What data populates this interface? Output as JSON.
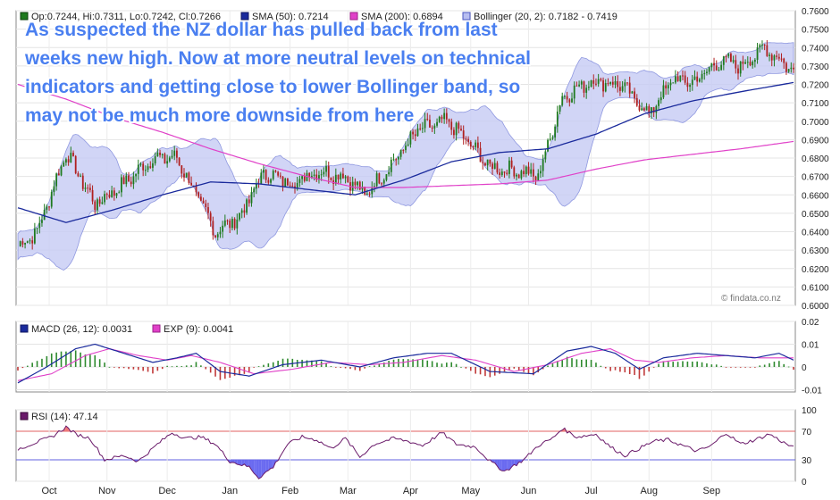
{
  "chart_data": [
    {
      "type": "candlestick",
      "panel": "price",
      "legend": [
        {
          "label": "Op:0.7244, Hi:0.7311, Lo:0.7242, Cl:0.7266",
          "color": "#1f7a1f"
        },
        {
          "label": "SMA (50): 0.7214",
          "color": "#1a2a9c"
        },
        {
          "label": "SMA (200): 0.6894",
          "color": "#e040c8"
        },
        {
          "label": "Bollinger (20, 2): 0.7182 - 0.7419",
          "color": "#b8bef0"
        }
      ],
      "annotation": [
        "As suspected the NZ dollar has pulled back from last",
        "weeks new high. Now at more neutral levels on technical",
        "indicators and getting close to lower Bollinger band, so",
        "may not be much more downside from here"
      ],
      "watermark": "© findata.co.nz",
      "yticks": [
        "0.7600",
        "0.7500",
        "0.7400",
        "0.7300",
        "0.7200",
        "0.7100",
        "0.7000",
        "0.6900",
        "0.6800",
        "0.6700",
        "0.6600",
        "0.6500",
        "0.6400",
        "0.6300",
        "0.6200",
        "0.6100",
        "0.6000"
      ],
      "ylim": [
        0.6,
        0.76
      ],
      "anchors": [
        [
          0,
          0.632
        ],
        [
          8,
          0.64
        ],
        [
          20,
          0.683
        ],
        [
          32,
          0.655
        ],
        [
          44,
          0.666
        ],
        [
          56,
          0.68
        ],
        [
          66,
          0.68
        ],
        [
          76,
          0.655
        ],
        [
          82,
          0.64
        ],
        [
          92,
          0.648
        ],
        [
          102,
          0.672
        ],
        [
          114,
          0.666
        ],
        [
          124,
          0.673
        ],
        [
          136,
          0.67
        ],
        [
          144,
          0.66
        ],
        [
          154,
          0.675
        ],
        [
          166,
          0.695
        ],
        [
          178,
          0.7
        ],
        [
          186,
          0.69
        ],
        [
          196,
          0.675
        ],
        [
          208,
          0.673
        ],
        [
          216,
          0.67
        ],
        [
          226,
          0.713
        ],
        [
          238,
          0.722
        ],
        [
          250,
          0.72
        ],
        [
          262,
          0.704
        ],
        [
          272,
          0.723
        ],
        [
          280,
          0.721
        ],
        [
          292,
          0.733
        ],
        [
          300,
          0.73
        ],
        [
          310,
          0.74
        ],
        [
          316,
          0.734
        ],
        [
          322,
          0.727
        ]
      ],
      "sma50": [
        [
          0,
          0.653
        ],
        [
          20,
          0.645
        ],
        [
          40,
          0.652
        ],
        [
          60,
          0.66
        ],
        [
          80,
          0.667
        ],
        [
          100,
          0.666
        ],
        [
          120,
          0.663
        ],
        [
          140,
          0.66
        ],
        [
          160,
          0.668
        ],
        [
          180,
          0.678
        ],
        [
          200,
          0.683
        ],
        [
          220,
          0.685
        ],
        [
          240,
          0.693
        ],
        [
          260,
          0.704
        ],
        [
          280,
          0.711
        ],
        [
          300,
          0.716
        ],
        [
          322,
          0.721
        ]
      ],
      "sma200": [
        [
          0,
          0.72
        ],
        [
          20,
          0.712
        ],
        [
          40,
          0.702
        ],
        [
          60,
          0.694
        ],
        [
          80,
          0.685
        ],
        [
          100,
          0.677
        ],
        [
          120,
          0.67
        ],
        [
          140,
          0.664
        ],
        [
          160,
          0.664
        ],
        [
          180,
          0.665
        ],
        [
          200,
          0.666
        ],
        [
          220,
          0.668
        ],
        [
          240,
          0.674
        ],
        [
          260,
          0.679
        ],
        [
          280,
          0.682
        ],
        [
          300,
          0.685
        ],
        [
          322,
          0.689
        ]
      ]
    },
    {
      "type": "line",
      "panel": "macd",
      "legend": [
        {
          "label": "MACD (26, 12): 0.0031",
          "color": "#1a2a9c"
        },
        {
          "label": "EXP (9): 0.0041",
          "color": "#e040c8"
        }
      ],
      "yticks": [
        "0.02",
        "0.01",
        "0",
        "-0.01"
      ],
      "ylim": [
        -0.011,
        0.02
      ],
      "macd": [
        [
          0,
          -0.007
        ],
        [
          12,
          0.0
        ],
        [
          24,
          0.008
        ],
        [
          32,
          0.01
        ],
        [
          44,
          0.006
        ],
        [
          56,
          0.002
        ],
        [
          66,
          0.004
        ],
        [
          74,
          0.006
        ],
        [
          84,
          -0.002
        ],
        [
          96,
          -0.004
        ],
        [
          110,
          0.001
        ],
        [
          126,
          0.003
        ],
        [
          142,
          0.0
        ],
        [
          156,
          0.004
        ],
        [
          170,
          0.006
        ],
        [
          180,
          0.006
        ],
        [
          196,
          -0.002
        ],
        [
          214,
          -0.003
        ],
        [
          228,
          0.007
        ],
        [
          238,
          0.009
        ],
        [
          248,
          0.006
        ],
        [
          258,
          -0.001
        ],
        [
          268,
          0.004
        ],
        [
          282,
          0.006
        ],
        [
          294,
          0.005
        ],
        [
          306,
          0.004
        ],
        [
          316,
          0.006
        ],
        [
          322,
          0.003
        ]
      ],
      "signal": [
        [
          0,
          -0.006
        ],
        [
          14,
          -0.003
        ],
        [
          28,
          0.005
        ],
        [
          38,
          0.008
        ],
        [
          50,
          0.005
        ],
        [
          62,
          0.003
        ],
        [
          72,
          0.005
        ],
        [
          84,
          0.002
        ],
        [
          98,
          -0.003
        ],
        [
          114,
          -0.001
        ],
        [
          130,
          0.002
        ],
        [
          146,
          0.001
        ],
        [
          160,
          0.002
        ],
        [
          176,
          0.005
        ],
        [
          190,
          0.003
        ],
        [
          206,
          -0.002
        ],
        [
          220,
          0.001
        ],
        [
          234,
          0.006
        ],
        [
          246,
          0.008
        ],
        [
          256,
          0.003
        ],
        [
          266,
          0.002
        ],
        [
          280,
          0.004
        ],
        [
          294,
          0.005
        ],
        [
          308,
          0.004
        ],
        [
          322,
          0.004
        ]
      ]
    },
    {
      "type": "line",
      "panel": "rsi",
      "legend": [
        {
          "label": "RSI (14): 47.14",
          "color": "#6a1a6a"
        }
      ],
      "yticks": [
        "100",
        "70",
        "30",
        "0"
      ],
      "ylim": [
        0,
        100
      ],
      "levels": [
        70,
        30
      ],
      "rsi": [
        [
          0,
          45
        ],
        [
          8,
          55
        ],
        [
          14,
          62
        ],
        [
          20,
          76
        ],
        [
          24,
          66
        ],
        [
          30,
          60
        ],
        [
          36,
          30
        ],
        [
          44,
          36
        ],
        [
          50,
          28
        ],
        [
          58,
          52
        ],
        [
          64,
          68
        ],
        [
          70,
          60
        ],
        [
          76,
          62
        ],
        [
          82,
          52
        ],
        [
          88,
          28
        ],
        [
          96,
          20
        ],
        [
          100,
          5
        ],
        [
          106,
          20
        ],
        [
          112,
          52
        ],
        [
          118,
          62
        ],
        [
          124,
          58
        ],
        [
          130,
          46
        ],
        [
          136,
          60
        ],
        [
          142,
          34
        ],
        [
          148,
          52
        ],
        [
          156,
          60
        ],
        [
          162,
          56
        ],
        [
          168,
          50
        ],
        [
          176,
          68
        ],
        [
          182,
          52
        ],
        [
          190,
          48
        ],
        [
          196,
          28
        ],
        [
          202,
          14
        ],
        [
          210,
          30
        ],
        [
          216,
          50
        ],
        [
          222,
          60
        ],
        [
          226,
          74
        ],
        [
          232,
          62
        ],
        [
          240,
          66
        ],
        [
          246,
          48
        ],
        [
          252,
          36
        ],
        [
          258,
          46
        ],
        [
          264,
          56
        ],
        [
          270,
          58
        ],
        [
          276,
          50
        ],
        [
          282,
          42
        ],
        [
          288,
          50
        ],
        [
          294,
          68
        ],
        [
          300,
          52
        ],
        [
          306,
          58
        ],
        [
          312,
          66
        ],
        [
          318,
          54
        ],
        [
          322,
          47
        ]
      ]
    }
  ],
  "months": [
    "Oct",
    "Nov",
    "Dec",
    "Jan",
    "Feb",
    "Mar",
    "Apr",
    "May",
    "Jun",
    "Jul",
    "Aug",
    "Sep"
  ],
  "month_positions": [
    13,
    37,
    62,
    88,
    113,
    137,
    163,
    188,
    212,
    238,
    262,
    288
  ]
}
